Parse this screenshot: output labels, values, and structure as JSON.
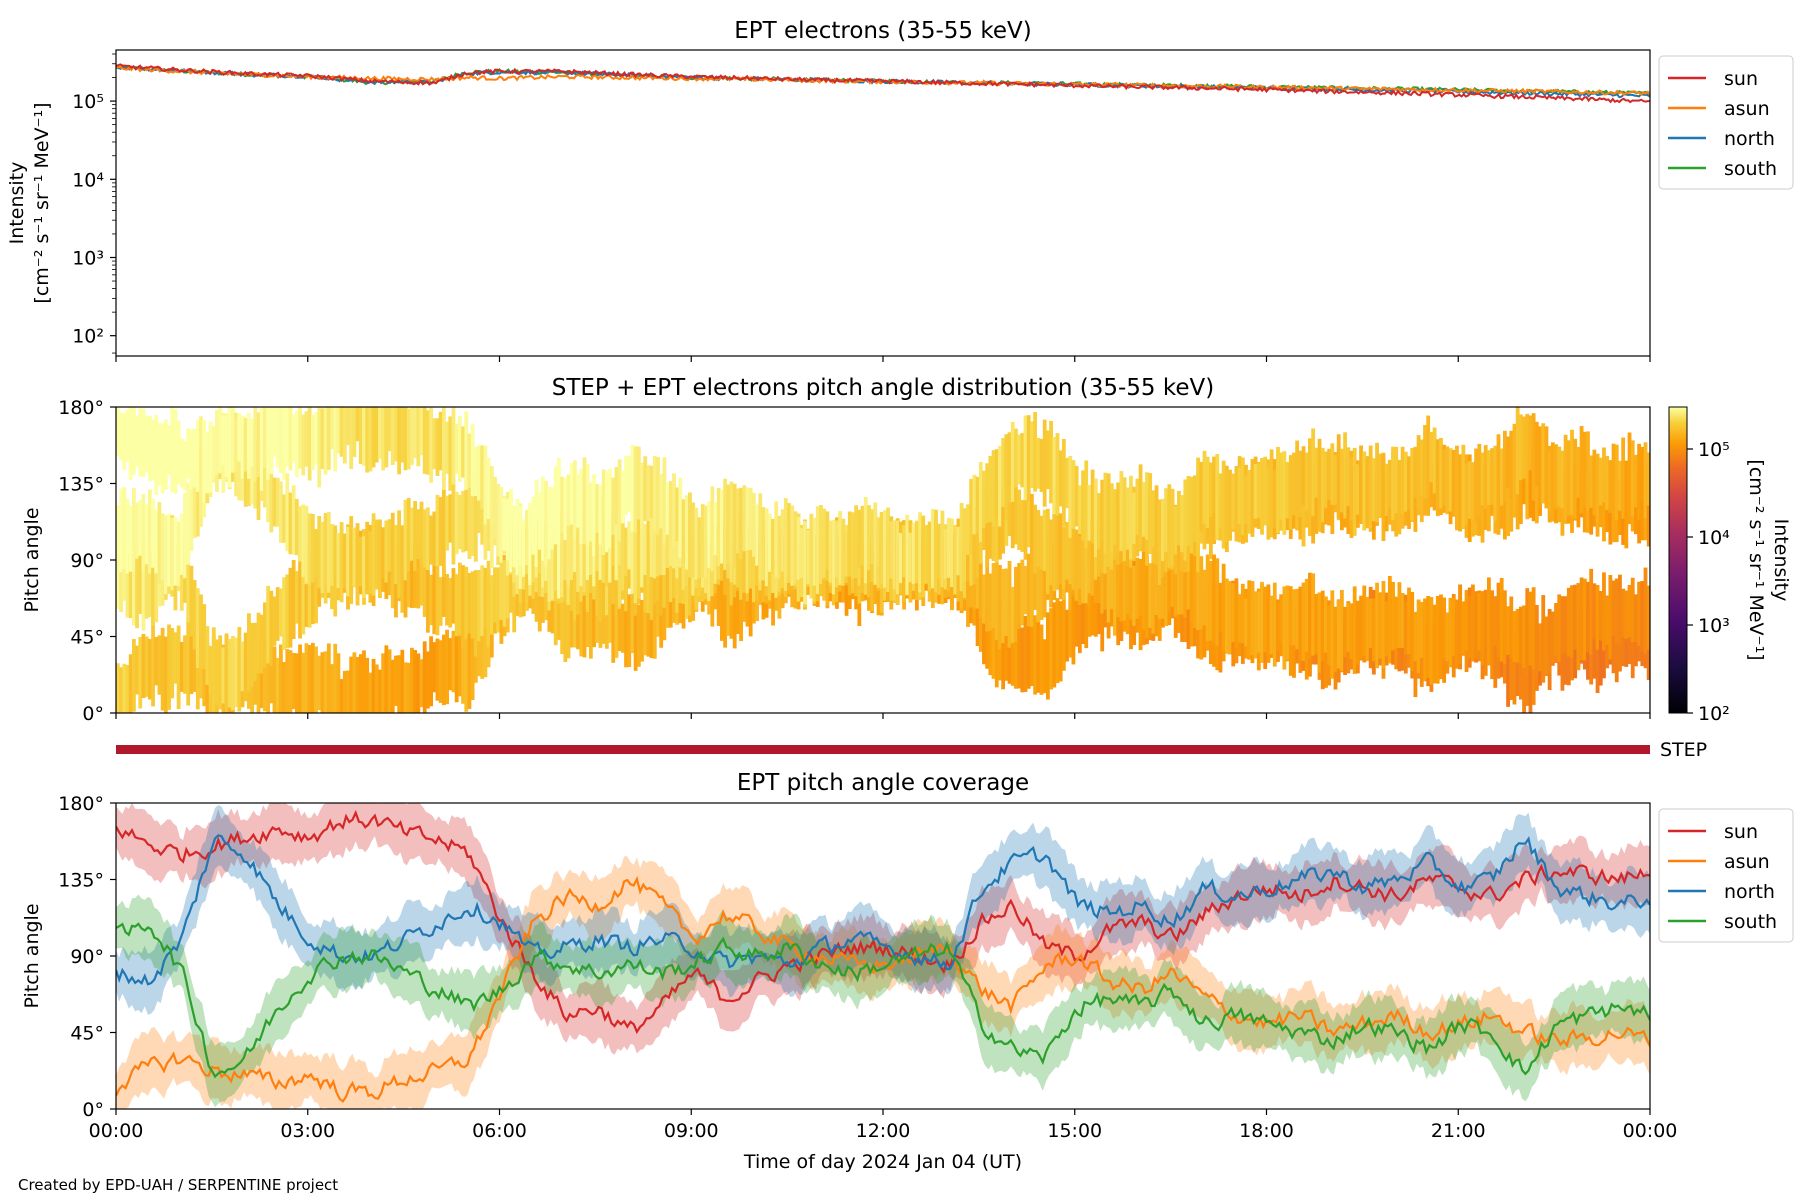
{
  "credit": "Created by EPD-UAH / SERPENTINE project",
  "colors": {
    "sun": "#d62728",
    "asun": "#ff7f0e",
    "north": "#1f77b4",
    "south": "#2ca02c",
    "step_bar": "#b2182b"
  },
  "chart_data": [
    {
      "type": "line",
      "title": "EPT electrons (35-55 keV)",
      "xlabel": "",
      "ylabel_line1": "Intensity",
      "ylabel_line2": "[cm⁻² s⁻¹ sr⁻¹ MeV⁻¹]",
      "y_scale": "log",
      "ylim": [
        55,
        450000
      ],
      "yticks": [
        {
          "value": 100,
          "label": "10²"
        },
        {
          "value": 1000,
          "label": "10³"
        },
        {
          "value": 10000,
          "label": "10⁴"
        },
        {
          "value": 100000,
          "label": "10⁵"
        }
      ],
      "legend_position": "outside-right-top",
      "x_hours": [
        0,
        1,
        2,
        3,
        4,
        5,
        5.5,
        6,
        7,
        8,
        9,
        10,
        11,
        12,
        13,
        14,
        15,
        16,
        17,
        18,
        19,
        20,
        21,
        22,
        23,
        24
      ],
      "series": [
        {
          "name": "sun",
          "values": [
            280000,
            250000,
            225000,
            210000,
            180000,
            170000,
            230000,
            240000,
            240000,
            220000,
            205000,
            195000,
            185000,
            180000,
            172000,
            165000,
            158000,
            152000,
            146000,
            140000,
            133000,
            127000,
            120000,
            113000,
            106000,
            98000
          ]
        },
        {
          "name": "asun",
          "values": [
            265000,
            240000,
            220000,
            205000,
            195000,
            190000,
            200000,
            195000,
            205000,
            200000,
            195000,
            190000,
            183000,
            178000,
            172000,
            168000,
            163000,
            160000,
            155000,
            150000,
            146000,
            142000,
            138000,
            134000,
            130000,
            126000
          ]
        },
        {
          "name": "north",
          "values": [
            275000,
            245000,
            222000,
            208000,
            175000,
            175000,
            225000,
            235000,
            230000,
            215000,
            200000,
            192000,
            185000,
            179000,
            173000,
            167000,
            162000,
            157000,
            152000,
            147000,
            142000,
            137000,
            132000,
            127000,
            122000,
            116000
          ]
        },
        {
          "name": "south",
          "values": [
            270000,
            243000,
            220000,
            206000,
            172000,
            180000,
            235000,
            240000,
            232000,
            212000,
            200000,
            193000,
            186000,
            180000,
            175000,
            170000,
            165000,
            160000,
            156000,
            152000,
            147000,
            143000,
            139000,
            134000,
            130000,
            125000
          ]
        }
      ]
    },
    {
      "type": "heatmap",
      "title": "STEP + EPT electrons pitch angle distribution (35-55 keV)",
      "ylabel": "Pitch angle",
      "ylim": [
        0,
        180
      ],
      "yticks": [
        "0°",
        "45°",
        "90°",
        "135°",
        "180°"
      ],
      "colorbar": {
        "label_line1": "Intensity",
        "label_line2": "[cm⁻² s⁻¹ sr⁻¹ MeV⁻¹]",
        "scale": "log",
        "range": [
          100,
          300000
        ],
        "ticks": [
          {
            "value": 100,
            "label": "10²"
          },
          {
            "value": 1000,
            "label": "10³"
          },
          {
            "value": 10000,
            "label": "10⁴"
          },
          {
            "value": 100000,
            "label": "10⁵"
          }
        ],
        "colormap": "inferno"
      },
      "band_hours": [
        0,
        1,
        2,
        3,
        4,
        5,
        6,
        7,
        8,
        9,
        10,
        11,
        12,
        13,
        14,
        15,
        16,
        17,
        18,
        19,
        20,
        21,
        22,
        23,
        24
      ],
      "band_intensity": [
        280000,
        250000,
        225000,
        210000,
        180000,
        175000,
        235000,
        235000,
        215000,
        200000,
        193000,
        185000,
        180000,
        173000,
        166000,
        160000,
        154000,
        148000,
        142000,
        136000,
        130000,
        124000,
        118000,
        110000,
        104000
      ]
    },
    {
      "type": "bar",
      "label": "STEP",
      "x_range": [
        0,
        24
      ]
    },
    {
      "type": "line",
      "title": "EPT pitch angle coverage",
      "xlabel": "Time of day 2024 Jan 04 (UT)",
      "ylabel": "Pitch angle",
      "ylim": [
        0,
        180
      ],
      "yticks": [
        "0°",
        "45°",
        "90°",
        "135°",
        "180°"
      ],
      "xticks": [
        "00:00",
        "03:00",
        "06:00",
        "09:00",
        "12:00",
        "15:00",
        "18:00",
        "21:00",
        "00:00"
      ],
      "legend_position": "outside-right-top",
      "x_hours": [
        0,
        0.5,
        1,
        1.5,
        2,
        2.5,
        3,
        3.5,
        4,
        4.5,
        5,
        5.5,
        6,
        6.5,
        7,
        7.5,
        8,
        8.5,
        9,
        9.5,
        10,
        10.5,
        11,
        11.5,
        12,
        12.5,
        13,
        13.5,
        14,
        14.5,
        15,
        15.5,
        16,
        16.5,
        17,
        17.5,
        18,
        18.5,
        19,
        19.5,
        20,
        20.5,
        21,
        21.5,
        22,
        22.5,
        23,
        23.5,
        24
      ],
      "series": [
        {
          "name": "sun",
          "values": [
            165,
            155,
            150,
            155,
            160,
            165,
            160,
            170,
            170,
            162,
            158,
            150,
            110,
            80,
            55,
            60,
            45,
            60,
            80,
            65,
            75,
            85,
            90,
            95,
            95,
            90,
            85,
            110,
            120,
            95,
            90,
            105,
            110,
            100,
            115,
            125,
            130,
            125,
            135,
            130,
            125,
            135,
            130,
            125,
            135,
            140,
            138,
            135,
            140
          ]
        },
        {
          "name": "asun",
          "values": [
            15,
            25,
            30,
            22,
            20,
            15,
            20,
            10,
            10,
            18,
            22,
            30,
            70,
            110,
            125,
            120,
            135,
            120,
            100,
            115,
            105,
            95,
            90,
            85,
            85,
            90,
            95,
            70,
            60,
            85,
            90,
            75,
            70,
            80,
            65,
            55,
            50,
            55,
            45,
            50,
            55,
            45,
            50,
            55,
            45,
            40,
            42,
            45,
            40
          ]
        },
        {
          "name": "north",
          "values": [
            80,
            75,
            100,
            160,
            150,
            120,
            100,
            90,
            90,
            100,
            110,
            120,
            110,
            90,
            95,
            100,
            95,
            100,
            95,
            85,
            90,
            85,
            95,
            100,
            95,
            90,
            85,
            130,
            145,
            150,
            120,
            115,
            120,
            110,
            130,
            125,
            130,
            135,
            140,
            130,
            135,
            145,
            130,
            135,
            160,
            130,
            125,
            120,
            125
          ]
        },
        {
          "name": "south",
          "values": [
            100,
            110,
            80,
            20,
            30,
            60,
            80,
            90,
            90,
            80,
            70,
            60,
            70,
            90,
            85,
            80,
            85,
            80,
            85,
            95,
            90,
            95,
            85,
            80,
            85,
            90,
            95,
            50,
            35,
            30,
            60,
            65,
            60,
            70,
            50,
            55,
            50,
            45,
            40,
            50,
            45,
            35,
            50,
            45,
            20,
            50,
            55,
            60,
            55
          ]
        }
      ]
    }
  ]
}
